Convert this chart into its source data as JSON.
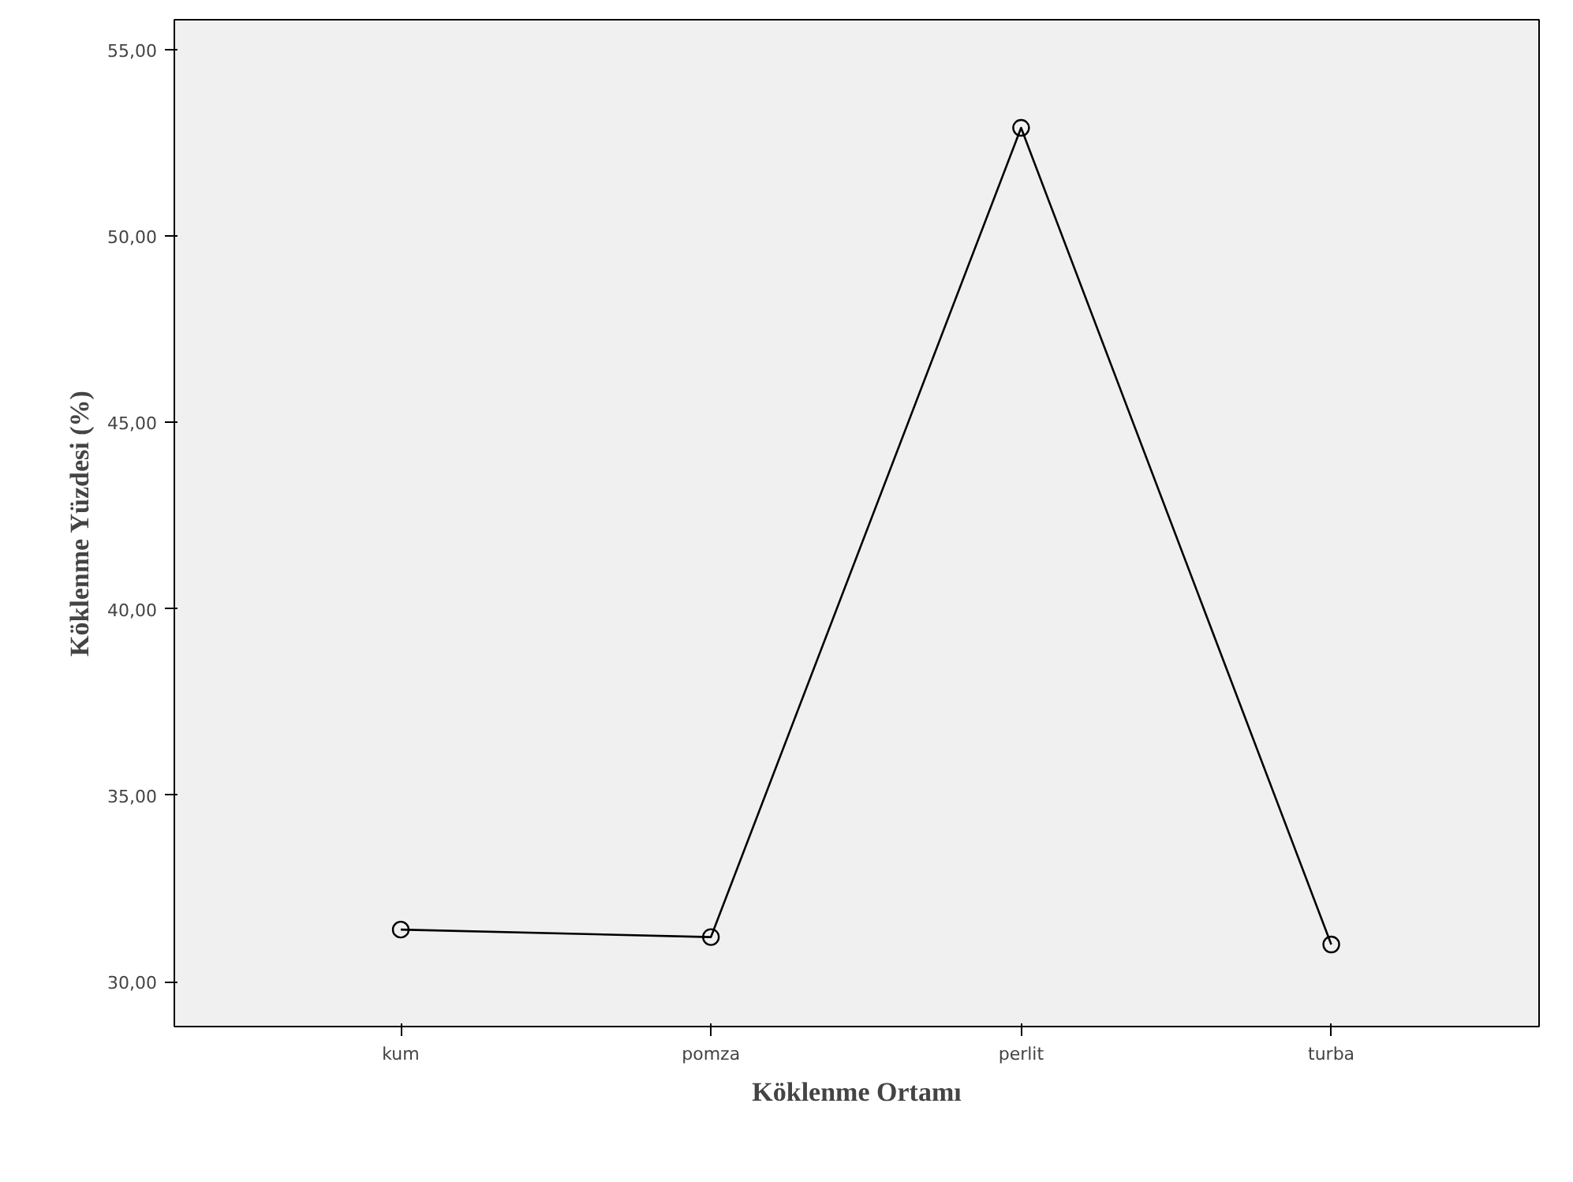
{
  "chart_data": {
    "type": "line",
    "xlabel": "Köklenme Ortamı",
    "ylabel": "Köklenme Yüzdesi (%)",
    "categories": [
      "kum",
      "pomza",
      "perlit",
      "turba"
    ],
    "series": [
      {
        "color": "#000000",
        "values": [
          31.4,
          31.2,
          52.9,
          31.0
        ]
      }
    ],
    "ylim": [
      28.8,
      55.8
    ],
    "yticks": [
      {
        "value": 30,
        "label": "30,00"
      },
      {
        "value": 35,
        "label": "35,00"
      },
      {
        "value": 40,
        "label": "40,00"
      },
      {
        "value": 45,
        "label": "45,00"
      },
      {
        "value": 50,
        "label": "50,00"
      },
      {
        "value": 55,
        "label": "55,00"
      }
    ],
    "marker": "circle",
    "line_style": "solid"
  }
}
